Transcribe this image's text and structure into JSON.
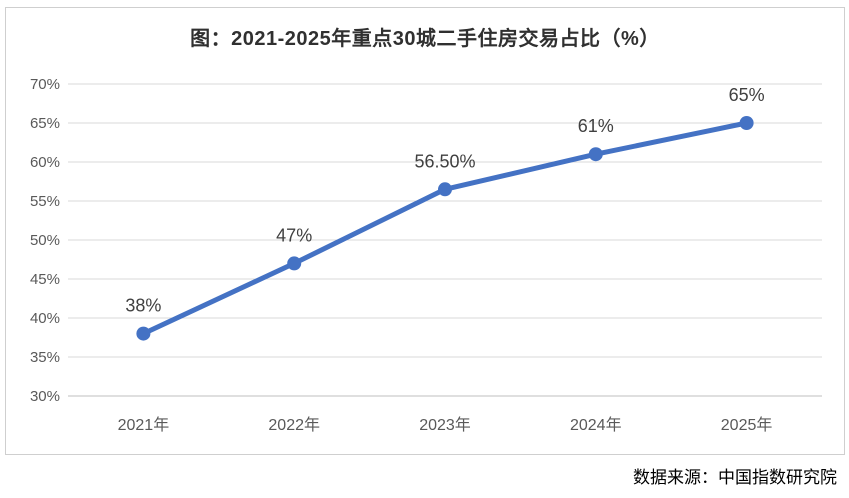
{
  "chart_data": {
    "type": "line",
    "title": "图：2021-2025年重点30城二手住房交易占比（%）",
    "categories": [
      "2021年",
      "2022年",
      "2023年",
      "2024年",
      "2025年"
    ],
    "values": [
      38,
      47,
      56.5,
      61,
      65
    ],
    "point_labels": [
      "38%",
      "47%",
      "56.50%",
      "61%",
      "65%"
    ],
    "xlabel": "",
    "ylabel": "",
    "ylim": [
      30,
      70
    ],
    "y_tick_step": 5,
    "y_tick_labels": [
      "30%",
      "35%",
      "40%",
      "45%",
      "50%",
      "55%",
      "60%",
      "65%",
      "70%"
    ],
    "grid": "horizontal",
    "legend": "none",
    "marker": "circle",
    "source_note": "数据来源：中国指数研究院",
    "colors": {
      "line": "#4472C4",
      "marker": "#4472C4",
      "gridline": "#D9D9D9",
      "axis_line": "#BFBFBF",
      "tick_text": "#595959",
      "data_label_text": "#404040",
      "title_text": "#303030",
      "box_border": "#CFCFCF",
      "background": "#FFFFFF"
    }
  }
}
